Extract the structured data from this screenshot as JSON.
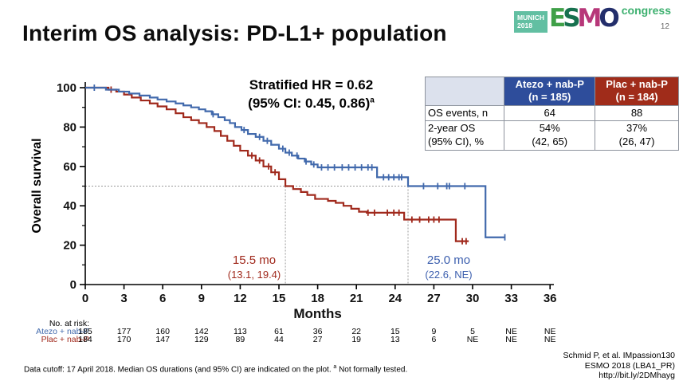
{
  "title": "Interim OS analysis: PD-L1+ population",
  "logo": {
    "munich": "MUNICH\n2018",
    "esmo_letters": [
      {
        "ch": "E",
        "color": "#3fa047"
      },
      {
        "ch": "S",
        "color": "#17714f"
      },
      {
        "ch": "M",
        "color": "#b73779"
      },
      {
        "ch": "O",
        "color": "#232e6b"
      }
    ],
    "congress": "congress",
    "page_number": "12"
  },
  "hr": {
    "line1": "Stratified HR = 0.62",
    "line2": "(95% CI: 0.45, 0.86)",
    "sup": "a"
  },
  "summary_table": {
    "corner": "",
    "columns": [
      "Atezo + nab-P\n(n = 185)",
      "Plac + nab-P\n(n = 184)"
    ],
    "header_colors": [
      "#2e4d9b",
      "#a02c1a"
    ],
    "rows": [
      {
        "label": "OS events, n",
        "values": [
          "64",
          "88"
        ]
      },
      {
        "label": "2-year OS\n  (95% CI), %",
        "values": [
          "54%\n(42, 65)",
          "37%\n(26, 47)"
        ]
      }
    ]
  },
  "chart_data": {
    "type": "line",
    "subtype": "kaplan-meier-step",
    "title": "",
    "xlabel": "Months",
    "ylabel": "Overall survival",
    "xlim": [
      0,
      36
    ],
    "xticks": [
      0,
      3,
      6,
      9,
      12,
      15,
      18,
      21,
      24,
      27,
      30,
      33,
      36
    ],
    "ylim": [
      0,
      100
    ],
    "yticks": [
      0,
      20,
      40,
      60,
      80,
      100
    ],
    "yticks_minor": [
      10,
      30,
      50,
      70,
      90
    ],
    "grid": false,
    "reference_line_y": 50,
    "reference_line_color": "#999999",
    "series": [
      {
        "name": "Atezo + nab-P",
        "color": "#4169ac",
        "median": "25.0 mo",
        "median_ci": "(22.6, NE)",
        "median_x": 25.0,
        "points": [
          [
            0,
            100
          ],
          [
            1.6,
            99
          ],
          [
            2.6,
            98
          ],
          [
            3.4,
            97
          ],
          [
            4.2,
            96
          ],
          [
            5.0,
            95
          ],
          [
            5.6,
            94
          ],
          [
            6.3,
            93
          ],
          [
            7.0,
            92
          ],
          [
            7.6,
            91
          ],
          [
            8.2,
            90
          ],
          [
            8.8,
            89
          ],
          [
            9.3,
            88
          ],
          [
            9.8,
            86.5
          ],
          [
            10.3,
            85
          ],
          [
            10.8,
            83.5
          ],
          [
            11.2,
            82
          ],
          [
            11.6,
            80
          ],
          [
            12.1,
            78.5
          ],
          [
            12.6,
            76.5
          ],
          [
            13.2,
            75
          ],
          [
            13.8,
            73
          ],
          [
            14.4,
            71
          ],
          [
            15.0,
            69
          ],
          [
            15.5,
            67
          ],
          [
            16.0,
            65.5
          ],
          [
            16.5,
            64
          ],
          [
            17.0,
            62.5
          ],
          [
            17.5,
            61
          ],
          [
            18.0,
            59.5
          ],
          [
            22.6,
            54.5
          ],
          [
            25.0,
            50
          ],
          [
            31.0,
            24
          ]
        ],
        "end": 32.5,
        "censors": [
          0.7,
          9.9,
          12.3,
          13.5,
          14.1,
          15.3,
          15.8,
          16.4,
          17.1,
          17.7,
          18.3,
          18.8,
          19.3,
          19.9,
          20.4,
          20.9,
          21.4,
          21.9,
          22.2,
          23.1,
          23.5,
          23.9,
          24.3,
          24.5,
          26.2,
          27.3,
          28.0,
          28.2,
          29.4,
          32.5
        ]
      },
      {
        "name": "Plac + nab-P",
        "color": "#a0291c",
        "median": "15.5 mo",
        "median_ci": "(13.1, 19.4)",
        "median_x": 15.5,
        "points": [
          [
            0,
            100
          ],
          [
            1.8,
            99
          ],
          [
            2.4,
            98
          ],
          [
            3.0,
            96.5
          ],
          [
            3.6,
            95
          ],
          [
            4.3,
            93.5
          ],
          [
            5.0,
            92
          ],
          [
            5.6,
            90.5
          ],
          [
            6.3,
            89
          ],
          [
            7.0,
            87
          ],
          [
            7.6,
            85
          ],
          [
            8.2,
            83.5
          ],
          [
            8.8,
            82
          ],
          [
            9.4,
            80
          ],
          [
            10.0,
            78
          ],
          [
            10.5,
            75.5
          ],
          [
            11.0,
            73
          ],
          [
            11.5,
            70.5
          ],
          [
            12.0,
            68
          ],
          [
            12.6,
            65.5
          ],
          [
            13.2,
            63
          ],
          [
            13.8,
            60
          ],
          [
            14.4,
            57
          ],
          [
            15.0,
            53.5
          ],
          [
            15.5,
            50
          ],
          [
            16.1,
            48.5
          ],
          [
            16.7,
            47
          ],
          [
            17.2,
            45.5
          ],
          [
            17.8,
            43.5
          ],
          [
            18.8,
            42.5
          ],
          [
            19.4,
            41.5
          ],
          [
            20.0,
            40
          ],
          [
            20.6,
            38.5
          ],
          [
            21.2,
            37
          ],
          [
            21.8,
            36.5
          ],
          [
            24.7,
            33
          ],
          [
            28.7,
            22
          ]
        ],
        "end": 29.7,
        "censors": [
          2.0,
          12.9,
          13.5,
          14.2,
          14.7,
          21.9,
          22.4,
          23.4,
          23.9,
          24.3,
          25.3,
          25.9,
          26.6,
          27.0,
          27.4,
          29.2,
          29.5
        ]
      }
    ]
  },
  "risk_table": {
    "label": "No. at risk:",
    "months": [
      0,
      3,
      6,
      9,
      12,
      15,
      18,
      21,
      24,
      27,
      30,
      33,
      36
    ],
    "rows": [
      {
        "name": "Atezo + nab-P",
        "color": "#4169ac",
        "values": [
          "185",
          "177",
          "160",
          "142",
          "113",
          "61",
          "36",
          "22",
          "15",
          "9",
          "5",
          "NE",
          "NE"
        ]
      },
      {
        "name": "Plac + nab-P",
        "color": "#a0291c",
        "values": [
          "184",
          "170",
          "147",
          "129",
          "89",
          "44",
          "27",
          "19",
          "13",
          "6",
          "NE",
          "NE",
          "NE"
        ]
      }
    ]
  },
  "footnote": {
    "pre": "Data cutoff: 17 April 2018. Median OS durations (and 95% CI) are indicated on the plot. ",
    "sup": "a",
    "post": " Not formally tested."
  },
  "citation": "Schmid P, et al. IMpassion130\nESMO 2018 (LBA1_PR)\nhttp://bit.ly/2DMhayg"
}
